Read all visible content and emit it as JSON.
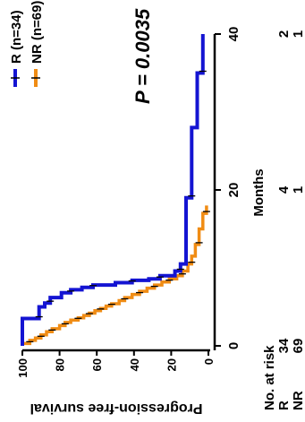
{
  "chart_data": {
    "type": "line",
    "title": "",
    "xlabel": "Months",
    "ylabel": "Progression-free survival",
    "xlim": [
      0,
      40
    ],
    "ylim": [
      0,
      100
    ],
    "x_ticks": [
      "0",
      "20",
      "40"
    ],
    "y_ticks": [
      "100",
      "80",
      "60",
      "40",
      "20",
      "0"
    ],
    "legend_position": "top-right",
    "annotation": "P = 0.0035",
    "series": [
      {
        "name": "R (n=34)",
        "color": "#1414d2",
        "points": [
          [
            0,
            100
          ],
          [
            3.5,
            100
          ],
          [
            3.5,
            91
          ],
          [
            5,
            91
          ],
          [
            5,
            88
          ],
          [
            5.5,
            88
          ],
          [
            5.5,
            85
          ],
          [
            6.2,
            85
          ],
          [
            6.2,
            79
          ],
          [
            6.8,
            79
          ],
          [
            6.8,
            74
          ],
          [
            7.2,
            74
          ],
          [
            7.2,
            68
          ],
          [
            7.5,
            68
          ],
          [
            7.5,
            62
          ],
          [
            7.8,
            62
          ],
          [
            7.8,
            50
          ],
          [
            8.1,
            50
          ],
          [
            8.1,
            41
          ],
          [
            8.4,
            41
          ],
          [
            8.4,
            32
          ],
          [
            8.6,
            32
          ],
          [
            8.6,
            26
          ],
          [
            9,
            26
          ],
          [
            9,
            18
          ],
          [
            9.6,
            18
          ],
          [
            9.6,
            15
          ],
          [
            10.5,
            15
          ],
          [
            10.5,
            12
          ],
          [
            19,
            12
          ],
          [
            19,
            9
          ],
          [
            28,
            9
          ],
          [
            28,
            6
          ],
          [
            35,
            6
          ],
          [
            35,
            3
          ],
          [
            40,
            3
          ]
        ]
      },
      {
        "name": "NR (n=69)",
        "color": "#f08c14",
        "points": [
          [
            0,
            100
          ],
          [
            0.3,
            100
          ],
          [
            0.3,
            96
          ],
          [
            0.7,
            96
          ],
          [
            0.7,
            93
          ],
          [
            1,
            93
          ],
          [
            1,
            90
          ],
          [
            1.4,
            90
          ],
          [
            1.4,
            87
          ],
          [
            1.8,
            87
          ],
          [
            1.8,
            84
          ],
          [
            2.2,
            84
          ],
          [
            2.2,
            80
          ],
          [
            2.6,
            80
          ],
          [
            2.6,
            77
          ],
          [
            3,
            77
          ],
          [
            3,
            74
          ],
          [
            3.3,
            74
          ],
          [
            3.3,
            70
          ],
          [
            3.6,
            70
          ],
          [
            3.6,
            67
          ],
          [
            3.9,
            67
          ],
          [
            3.9,
            64
          ],
          [
            4.2,
            64
          ],
          [
            4.2,
            61
          ],
          [
            4.5,
            61
          ],
          [
            4.5,
            58
          ],
          [
            4.8,
            58
          ],
          [
            4.8,
            55
          ],
          [
            5.1,
            55
          ],
          [
            5.1,
            52
          ],
          [
            5.4,
            52
          ],
          [
            5.4,
            48
          ],
          [
            5.8,
            48
          ],
          [
            5.8,
            45
          ],
          [
            6.2,
            45
          ],
          [
            6.2,
            41
          ],
          [
            6.6,
            41
          ],
          [
            6.6,
            37
          ],
          [
            7,
            37
          ],
          [
            7,
            33
          ],
          [
            7.4,
            33
          ],
          [
            7.4,
            29
          ],
          [
            7.8,
            29
          ],
          [
            7.8,
            25
          ],
          [
            8.2,
            25
          ],
          [
            8.2,
            21
          ],
          [
            8.6,
            21
          ],
          [
            8.6,
            17
          ],
          [
            9,
            17
          ],
          [
            9,
            14
          ],
          [
            9.6,
            14
          ],
          [
            9.6,
            11
          ],
          [
            10.5,
            11
          ],
          [
            10.5,
            9
          ],
          [
            11.5,
            9
          ],
          [
            11.5,
            7
          ],
          [
            13,
            7
          ],
          [
            13,
            5
          ],
          [
            15,
            5
          ],
          [
            15,
            3
          ],
          [
            17,
            3
          ],
          [
            17,
            1
          ],
          [
            18,
            1
          ]
        ]
      }
    ],
    "risk_table": {
      "title": "No. at risk",
      "time_points": [
        0,
        20,
        40
      ],
      "rows": [
        {
          "label": "R",
          "values": [
            "34",
            "4",
            "2"
          ]
        },
        {
          "label": "NR",
          "values": [
            "69",
            "1",
            "1"
          ]
        }
      ]
    }
  }
}
